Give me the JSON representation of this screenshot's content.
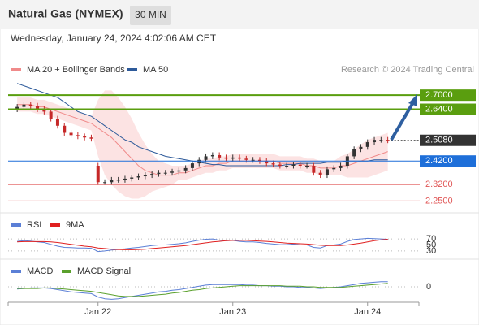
{
  "header": {
    "title": "Natural Gas (NYMEX)",
    "timeframe": "30 MIN",
    "datetime": "Wednesday, January 24, 2024 4:02:06 AM CET",
    "source": "Research © 2024 Trading Central"
  },
  "chart_data": [
    {
      "type": "candlestick",
      "up_color": "#333333",
      "down_color": "#c62828",
      "band_fill": "#fbd9d9",
      "ylim": [
        2.21,
        2.78
      ],
      "ohlc": {
        "open": [
          2.64,
          2.65,
          2.66,
          2.655,
          2.64,
          2.63,
          2.6,
          2.57,
          2.54,
          2.53,
          2.525,
          2.52,
          2.4,
          2.33,
          2.33,
          2.34,
          2.34,
          2.345,
          2.35,
          2.355,
          2.36,
          2.365,
          2.37,
          2.37,
          2.375,
          2.38,
          2.39,
          2.41,
          2.425,
          2.44,
          2.445,
          2.435,
          2.43,
          2.435,
          2.43,
          2.425,
          2.425,
          2.42,
          2.41,
          2.405,
          2.4,
          2.4,
          2.405,
          2.4,
          2.4,
          2.37,
          2.36,
          2.385,
          2.39,
          2.4,
          2.44,
          2.47,
          2.48,
          2.5,
          2.51,
          2.51
        ],
        "high": [
          2.662,
          2.672,
          2.672,
          2.667,
          2.652,
          2.642,
          2.612,
          2.582,
          2.552,
          2.542,
          2.537,
          2.532,
          2.412,
          2.342,
          2.352,
          2.352,
          2.357,
          2.362,
          2.367,
          2.372,
          2.377,
          2.382,
          2.382,
          2.387,
          2.392,
          2.402,
          2.422,
          2.437,
          2.452,
          2.457,
          2.457,
          2.447,
          2.447,
          2.447,
          2.442,
          2.437,
          2.437,
          2.432,
          2.422,
          2.417,
          2.412,
          2.417,
          2.417,
          2.412,
          2.412,
          2.382,
          2.397,
          2.402,
          2.412,
          2.452,
          2.482,
          2.492,
          2.512,
          2.522,
          2.522,
          2.522
        ],
        "low": [
          2.628,
          2.638,
          2.643,
          2.628,
          2.618,
          2.588,
          2.558,
          2.528,
          2.518,
          2.513,
          2.508,
          2.503,
          2.318,
          2.318,
          2.318,
          2.328,
          2.328,
          2.333,
          2.338,
          2.343,
          2.348,
          2.353,
          2.358,
          2.358,
          2.363,
          2.368,
          2.378,
          2.398,
          2.413,
          2.428,
          2.423,
          2.418,
          2.418,
          2.418,
          2.413,
          2.413,
          2.408,
          2.398,
          2.393,
          2.388,
          2.388,
          2.388,
          2.388,
          2.388,
          2.358,
          2.348,
          2.348,
          2.373,
          2.378,
          2.388,
          2.428,
          2.458,
          2.468,
          2.488,
          2.498,
          2.496
        ],
        "close": [
          2.65,
          2.66,
          2.655,
          2.64,
          2.63,
          2.6,
          2.57,
          2.54,
          2.53,
          2.525,
          2.52,
          2.515,
          2.33,
          2.33,
          2.34,
          2.34,
          2.345,
          2.35,
          2.355,
          2.36,
          2.365,
          2.37,
          2.37,
          2.375,
          2.38,
          2.39,
          2.41,
          2.425,
          2.44,
          2.445,
          2.435,
          2.43,
          2.435,
          2.43,
          2.425,
          2.425,
          2.42,
          2.41,
          2.405,
          2.4,
          2.4,
          2.405,
          2.4,
          2.4,
          2.37,
          2.36,
          2.385,
          2.39,
          2.4,
          2.44,
          2.47,
          2.48,
          2.5,
          2.51,
          2.51,
          2.508
        ]
      },
      "series": [
        {
          "name": "MA 20 + Bollinger Bands",
          "color": "#f08a8a",
          "values": [
            2.66,
            2.66,
            2.66,
            2.65,
            2.65,
            2.64,
            2.63,
            2.62,
            2.61,
            2.6,
            2.59,
            2.58,
            2.56,
            2.54,
            2.52,
            2.49,
            2.46,
            2.43,
            2.4,
            2.38,
            2.37,
            2.36,
            2.36,
            2.36,
            2.37,
            2.37,
            2.38,
            2.39,
            2.4,
            2.4,
            2.41,
            2.41,
            2.42,
            2.42,
            2.42,
            2.42,
            2.42,
            2.42,
            2.42,
            2.41,
            2.41,
            2.41,
            2.41,
            2.4,
            2.4,
            2.39,
            2.39,
            2.39,
            2.4,
            2.4,
            2.41,
            2.42,
            2.43,
            2.44,
            2.45,
            2.46
          ],
          "upper": [
            2.69,
            2.69,
            2.69,
            2.68,
            2.68,
            2.67,
            2.66,
            2.65,
            2.64,
            2.63,
            2.62,
            2.61,
            2.68,
            2.72,
            2.72,
            2.69,
            2.65,
            2.6,
            2.54,
            2.49,
            2.45,
            2.42,
            2.41,
            2.4,
            2.4,
            2.4,
            2.41,
            2.42,
            2.43,
            2.43,
            2.44,
            2.44,
            2.45,
            2.45,
            2.45,
            2.45,
            2.45,
            2.45,
            2.45,
            2.44,
            2.44,
            2.44,
            2.44,
            2.43,
            2.43,
            2.42,
            2.42,
            2.42,
            2.44,
            2.45,
            2.47,
            2.49,
            2.51,
            2.52,
            2.53,
            2.54
          ],
          "lower": [
            2.63,
            2.63,
            2.63,
            2.62,
            2.62,
            2.61,
            2.6,
            2.59,
            2.58,
            2.57,
            2.56,
            2.55,
            2.44,
            2.36,
            2.32,
            2.29,
            2.27,
            2.26,
            2.26,
            2.27,
            2.29,
            2.3,
            2.31,
            2.32,
            2.34,
            2.34,
            2.35,
            2.36,
            2.37,
            2.37,
            2.38,
            2.38,
            2.39,
            2.39,
            2.39,
            2.39,
            2.39,
            2.39,
            2.39,
            2.38,
            2.38,
            2.38,
            2.38,
            2.37,
            2.37,
            2.36,
            2.36,
            2.36,
            2.36,
            2.35,
            2.35,
            2.35,
            2.35,
            2.36,
            2.37,
            2.38
          ]
        },
        {
          "name": "MA 50",
          "color": "#2d5a9a",
          "values": [
            2.75,
            2.74,
            2.73,
            2.72,
            2.71,
            2.7,
            2.69,
            2.67,
            2.65,
            2.63,
            2.62,
            2.61,
            2.59,
            2.57,
            2.55,
            2.53,
            2.51,
            2.5,
            2.48,
            2.47,
            2.46,
            2.45,
            2.44,
            2.435,
            2.43,
            2.425,
            2.42,
            2.415,
            2.41,
            2.405,
            2.405,
            2.4,
            2.4,
            2.4,
            2.4,
            2.4,
            2.4,
            2.4,
            2.4,
            2.4,
            2.405,
            2.405,
            2.41,
            2.41,
            2.41,
            2.41,
            2.415,
            2.415,
            2.415,
            2.42,
            2.42,
            2.42,
            2.42,
            2.425,
            2.425,
            2.425
          ]
        }
      ],
      "levels": [
        {
          "value": 2.7,
          "label": "2.7000",
          "color": "#5a9e0f",
          "boxed": true,
          "line_style": "solid"
        },
        {
          "value": 2.64,
          "label": "2.6400",
          "color": "#5a9e0f",
          "boxed": true,
          "line_style": "solid"
        },
        {
          "value": 2.508,
          "label": "2.5080",
          "color": "#333333",
          "boxed": true,
          "line_style": "dotted"
        },
        {
          "value": 2.42,
          "label": "2.4200",
          "color": "#1e6fd9",
          "boxed": true,
          "line_style": "solid"
        },
        {
          "value": 2.32,
          "label": "2.3200",
          "color": "#e05555",
          "boxed": false,
          "line_style": "solid"
        },
        {
          "value": 2.25,
          "label": "2.2500",
          "color": "#e05555",
          "boxed": false,
          "line_style": "solid"
        }
      ]
    },
    {
      "type": "line",
      "ylim": [
        0,
        100
      ],
      "yticks": [
        70,
        50,
        30
      ],
      "series": [
        {
          "name": "RSI",
          "color": "#5b7fd6",
          "values": [
            62,
            64,
            63,
            60,
            58,
            52,
            46,
            42,
            41,
            40,
            40,
            39,
            28,
            30,
            33,
            35,
            37,
            40,
            42,
            45,
            48,
            50,
            50,
            52,
            54,
            57,
            62,
            66,
            69,
            70,
            66,
            64,
            65,
            62,
            60,
            60,
            58,
            55,
            53,
            51,
            51,
            53,
            50,
            50,
            42,
            40,
            48,
            50,
            53,
            62,
            68,
            70,
            72,
            71,
            70,
            69
          ]
        },
        {
          "name": "9MA",
          "color": "#e02020",
          "values": [
            60,
            61,
            61,
            61,
            61,
            60,
            58,
            55,
            52,
            49,
            46,
            44,
            40,
            38,
            36,
            35,
            34,
            34,
            35,
            36,
            38,
            40,
            42,
            44,
            46,
            48,
            51,
            54,
            57,
            60,
            62,
            64,
            65,
            65,
            65,
            64,
            63,
            62,
            60,
            58,
            56,
            55,
            54,
            53,
            51,
            49,
            48,
            48,
            48,
            50,
            53,
            56,
            60,
            64,
            67,
            69
          ]
        }
      ]
    },
    {
      "type": "line",
      "ylim": [
        -0.03,
        0.03
      ],
      "yticks": [
        0
      ],
      "xlim": [
        -0.5,
        55.5
      ],
      "xticks": [
        {
          "value": 12,
          "label": "Jan 22"
        },
        {
          "value": 32,
          "label": "Jan 23"
        },
        {
          "value": 52,
          "label": "Jan 24"
        }
      ],
      "series": [
        {
          "name": "MACD",
          "color": "#5b7fd6",
          "values": [
            -0.004,
            -0.003,
            -0.002,
            -0.002,
            -0.002,
            -0.003,
            -0.005,
            -0.007,
            -0.009,
            -0.01,
            -0.011,
            -0.012,
            -0.018,
            -0.021,
            -0.022,
            -0.021,
            -0.019,
            -0.017,
            -0.015,
            -0.013,
            -0.011,
            -0.009,
            -0.008,
            -0.006,
            -0.005,
            -0.003,
            -0.001,
            0.001,
            0.003,
            0.004,
            0.004,
            0.004,
            0.004,
            0.004,
            0.003,
            0.003,
            0.002,
            0.002,
            0.001,
            0.001,
            0,
            0,
            -0.001,
            -0.001,
            -0.002,
            -0.003,
            -0.002,
            -0.001,
            0,
            0.002,
            0.004,
            0.006,
            0.007,
            0.008,
            0.009,
            0.009
          ]
        },
        {
          "name": "MACD Signal",
          "color": "#5aa02c",
          "values": [
            -0.003,
            -0.003,
            -0.003,
            -0.003,
            -0.002,
            -0.002,
            -0.003,
            -0.004,
            -0.005,
            -0.006,
            -0.007,
            -0.008,
            -0.01,
            -0.012,
            -0.014,
            -0.016,
            -0.017,
            -0.017,
            -0.017,
            -0.016,
            -0.015,
            -0.014,
            -0.013,
            -0.011,
            -0.01,
            -0.008,
            -0.006,
            -0.005,
            -0.003,
            -0.002,
            -0.001,
            0,
            0.001,
            0.002,
            0.002,
            0.002,
            0.002,
            0.002,
            0.002,
            0.002,
            0.001,
            0.001,
            0.001,
            0,
            0,
            -0.001,
            -0.001,
            -0.001,
            -0.001,
            0,
            0.001,
            0.002,
            0.003,
            0.004,
            0.005,
            0.006
          ]
        }
      ]
    }
  ]
}
